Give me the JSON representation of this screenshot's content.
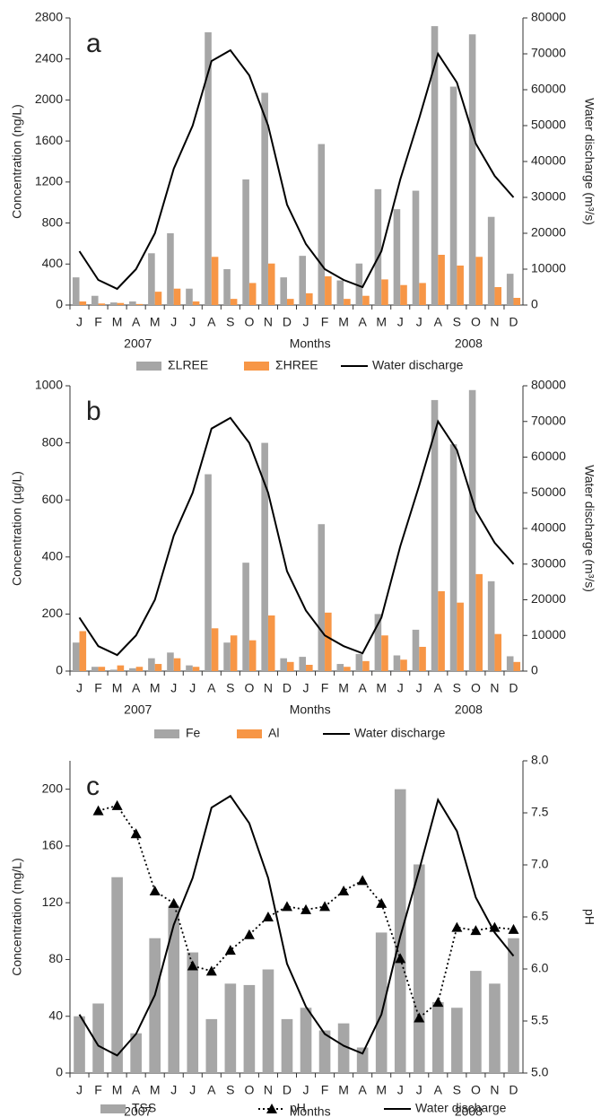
{
  "chart_data": [
    {
      "type": "bar",
      "label": "a",
      "categories": [
        "J",
        "F",
        "M",
        "A",
        "M",
        "J",
        "J",
        "A",
        "S",
        "O",
        "N",
        "D",
        "J",
        "F",
        "M",
        "A",
        "M",
        "J",
        "J",
        "A",
        "S",
        "O",
        "N",
        "D"
      ],
      "group_labels": [
        "2007",
        "Months",
        "2008"
      ],
      "ylabel": "Concentration  (ng/L)",
      "y2label": "Water discharge  (m³/s)",
      "ylim": [
        0,
        2800
      ],
      "yticks": [
        0,
        400,
        800,
        1200,
        1600,
        2000,
        2400,
        2800
      ],
      "y2lim": [
        0,
        80000
      ],
      "y2ticks": [
        0,
        10000,
        20000,
        30000,
        40000,
        50000,
        60000,
        70000,
        80000
      ],
      "series": [
        {
          "name": "ΣLREE",
          "type": "bar",
          "color": "#a6a6a6",
          "values": [
            270,
            90,
            25,
            35,
            505,
            700,
            160,
            2660,
            350,
            1225,
            2070,
            270,
            480,
            1570,
            240,
            405,
            1130,
            935,
            1115,
            2720,
            2130,
            2640,
            860,
            305
          ]
        },
        {
          "name": "ΣHREE",
          "type": "bar",
          "color": "#f79646",
          "values": [
            35,
            15,
            20,
            10,
            130,
            160,
            35,
            470,
            60,
            215,
            405,
            60,
            115,
            280,
            60,
            90,
            250,
            195,
            215,
            490,
            385,
            470,
            175,
            70
          ]
        },
        {
          "name": "Water discharge",
          "type": "line",
          "axis": "y2",
          "color": "#000000",
          "values": [
            15000,
            7000,
            4500,
            10000,
            20000,
            38000,
            50000,
            68000,
            71000,
            64000,
            50000,
            28000,
            17000,
            10000,
            7000,
            5000,
            15000,
            35000,
            52000,
            70000,
            62000,
            45000,
            36000,
            30000
          ]
        }
      ]
    },
    {
      "type": "bar",
      "label": "b",
      "categories": [
        "J",
        "F",
        "M",
        "A",
        "M",
        "J",
        "J",
        "A",
        "S",
        "O",
        "N",
        "D",
        "J",
        "F",
        "M",
        "A",
        "M",
        "J",
        "J",
        "A",
        "S",
        "O",
        "N",
        "D"
      ],
      "group_labels": [
        "2007",
        "Months",
        "2008"
      ],
      "ylabel": "Concentration  (µg/L)",
      "y2label": "Water discharge  (m³/s)",
      "ylim": [
        0,
        1000
      ],
      "yticks": [
        0,
        200,
        400,
        600,
        800,
        1000
      ],
      "y2lim": [
        0,
        80000
      ],
      "y2ticks": [
        0,
        10000,
        20000,
        30000,
        40000,
        50000,
        60000,
        70000,
        80000
      ],
      "series": [
        {
          "name": "Fe",
          "type": "bar",
          "color": "#a6a6a6",
          "values": [
            100,
            15,
            5,
            10,
            45,
            65,
            20,
            690,
            100,
            380,
            800,
            45,
            50,
            515,
            25,
            60,
            200,
            55,
            145,
            950,
            795,
            985,
            315,
            52
          ]
        },
        {
          "name": "Al",
          "type": "bar",
          "color": "#f79646",
          "values": [
            140,
            15,
            20,
            15,
            25,
            45,
            15,
            150,
            125,
            108,
            195,
            32,
            22,
            205,
            15,
            35,
            125,
            40,
            85,
            280,
            240,
            340,
            130,
            32
          ]
        },
        {
          "name": "Water discharge",
          "type": "line",
          "axis": "y2",
          "color": "#000000",
          "values": [
            15000,
            7000,
            4500,
            10000,
            20000,
            38000,
            50000,
            68000,
            71000,
            64000,
            50000,
            28000,
            17000,
            10000,
            7000,
            5000,
            15000,
            35000,
            52000,
            70000,
            62000,
            45000,
            36000,
            30000
          ]
        }
      ]
    },
    {
      "type": "bar",
      "label": "c",
      "categories": [
        "J",
        "F",
        "M",
        "A",
        "M",
        "J",
        "J",
        "A",
        "S",
        "O",
        "N",
        "D",
        "J",
        "F",
        "M",
        "A",
        "M",
        "J",
        "J",
        "A",
        "S",
        "O",
        "N",
        "D"
      ],
      "group_labels": [
        "2007",
        "Months",
        "2008"
      ],
      "ylabel": "Concentration  (mg/L)",
      "y2label": "pH",
      "ylim": [
        0,
        220
      ],
      "yticks": [
        0,
        40,
        80,
        120,
        160,
        200
      ],
      "y2lim": [
        5,
        8
      ],
      "y2ticks": [
        {
          "value": 5,
          "label": "5.0"
        },
        5.5,
        {
          "value": 6,
          "label": "6.0"
        },
        6.5,
        {
          "value": 7,
          "label": "7.0"
        },
        7.5,
        {
          "value": 8,
          "label": "8.0"
        }
      ],
      "y3lim": [
        0,
        80000
      ],
      "series": [
        {
          "name": "TSS",
          "type": "bar",
          "color": "#a6a6a6",
          "values": [
            40,
            49,
            138,
            28,
            95,
            118,
            85,
            38,
            63,
            62,
            73,
            38,
            46,
            30,
            35,
            18,
            99,
            200,
            147,
            50,
            46,
            72,
            63,
            95
          ]
        },
        {
          "name": "pH",
          "type": "line",
          "axis": "y2",
          "color": "#000000",
          "dash": "dotted",
          "marker": "triangle",
          "values": [
            null,
            7.52,
            7.57,
            7.3,
            6.75,
            6.63,
            6.03,
            5.98,
            6.18,
            6.33,
            6.5,
            6.6,
            6.57,
            6.6,
            6.75,
            6.85,
            6.63,
            6.1,
            5.53,
            5.68,
            6.4,
            6.37,
            6.4,
            6.38
          ]
        },
        {
          "name": "Water discharge",
          "type": "line",
          "axis": "y3",
          "color": "#000000",
          "values": [
            15000,
            7000,
            4500,
            10000,
            20000,
            38000,
            50000,
            68000,
            71000,
            64000,
            50000,
            28000,
            17000,
            10000,
            7000,
            5000,
            15000,
            35000,
            52000,
            70000,
            62000,
            45000,
            36000,
            30000
          ]
        }
      ]
    }
  ]
}
